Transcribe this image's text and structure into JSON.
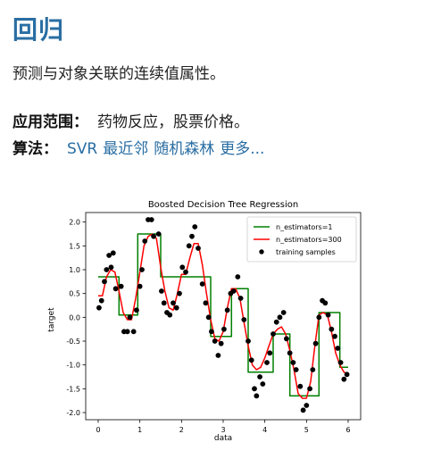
{
  "section": {
    "title": "回归",
    "description": "预测与对象关联的连续值属性。",
    "applications_label": "应用范围：",
    "applications_value": "药物反应，股票价格。",
    "algorithms_label": "算法：",
    "algorithms": [
      "SVR",
      "最近邻",
      "随机森林",
      "更多..."
    ]
  },
  "chart_data": {
    "type": "line",
    "title": "Boosted Decision Tree Regression",
    "xlabel": "data",
    "ylabel": "target",
    "xlim": [
      -0.3,
      6.3
    ],
    "ylim": [
      -2.15,
      2.2
    ],
    "xticks": [
      0,
      1,
      2,
      3,
      4,
      5,
      6
    ],
    "yticks": [
      2.0,
      1.5,
      1.0,
      0.5,
      0.0,
      -0.5,
      -1.0,
      -1.5,
      -2.0
    ],
    "legend_position": "top-right",
    "grid": false,
    "series": [
      {
        "name": "n_estimators=1",
        "color": "#008000",
        "kind": "step",
        "x": [
          0.0,
          0.5,
          0.5,
          0.95,
          0.95,
          1.5,
          1.5,
          2.7,
          2.7,
          3.2,
          3.2,
          3.6,
          3.6,
          4.2,
          4.2,
          4.6,
          4.6,
          5.3,
          5.3,
          5.8,
          5.8,
          6.0
        ],
        "y": [
          0.85,
          0.85,
          0.05,
          0.05,
          1.75,
          1.75,
          0.85,
          0.85,
          -0.4,
          -0.4,
          0.6,
          0.6,
          -1.15,
          -1.15,
          -0.35,
          -0.35,
          -1.65,
          -1.65,
          0.1,
          0.1,
          -1.05,
          -1.05
        ]
      },
      {
        "name": "n_estimators=300",
        "color": "#ff0000",
        "kind": "line",
        "x": [
          0.0,
          0.1,
          0.2,
          0.3,
          0.4,
          0.5,
          0.6,
          0.7,
          0.8,
          0.9,
          1.0,
          1.1,
          1.2,
          1.3,
          1.4,
          1.5,
          1.6,
          1.7,
          1.8,
          1.9,
          2.0,
          2.1,
          2.2,
          2.3,
          2.4,
          2.5,
          2.6,
          2.7,
          2.8,
          2.9,
          3.0,
          3.1,
          3.2,
          3.3,
          3.4,
          3.5,
          3.6,
          3.7,
          3.8,
          3.9,
          4.0,
          4.1,
          4.2,
          4.3,
          4.4,
          4.5,
          4.6,
          4.7,
          4.8,
          4.9,
          5.0,
          5.1,
          5.2,
          5.3,
          5.4,
          5.5,
          5.6,
          5.7,
          5.8,
          5.9,
          6.0
        ],
        "y": [
          0.45,
          0.45,
          0.85,
          1.0,
          0.95,
          0.55,
          0.1,
          -0.05,
          -0.05,
          0.4,
          0.95,
          1.5,
          1.7,
          1.75,
          1.65,
          1.05,
          0.55,
          0.2,
          0.15,
          0.5,
          0.9,
          0.9,
          1.25,
          1.55,
          1.55,
          1.1,
          0.5,
          -0.05,
          -0.45,
          -0.5,
          -0.3,
          0.2,
          0.6,
          0.6,
          0.4,
          -0.1,
          -0.6,
          -1.0,
          -1.1,
          -1.05,
          -0.85,
          -0.6,
          -0.35,
          -0.25,
          -0.2,
          -0.35,
          -0.7,
          -1.1,
          -1.6,
          -1.7,
          -1.7,
          -1.35,
          -0.6,
          0.05,
          0.1,
          0.05,
          -0.3,
          -0.75,
          -1.0,
          -1.15,
          -1.2
        ]
      },
      {
        "name": "training samples",
        "color": "#000000",
        "kind": "scatter",
        "x": [
          0.02,
          0.08,
          0.15,
          0.2,
          0.26,
          0.31,
          0.36,
          0.42,
          0.55,
          0.62,
          0.7,
          0.76,
          0.85,
          0.92,
          1.0,
          1.05,
          1.12,
          1.2,
          1.28,
          1.33,
          1.45,
          1.52,
          1.58,
          1.65,
          1.72,
          1.8,
          1.88,
          1.95,
          2.02,
          2.1,
          2.18,
          2.25,
          2.32,
          2.4,
          2.5,
          2.58,
          2.65,
          2.72,
          2.8,
          2.88,
          2.95,
          3.02,
          3.1,
          3.18,
          3.25,
          3.35,
          3.42,
          3.5,
          3.6,
          3.68,
          3.75,
          3.8,
          3.88,
          3.95,
          4.05,
          4.12,
          4.2,
          4.28,
          4.36,
          4.45,
          4.52,
          4.6,
          4.68,
          4.75,
          4.85,
          4.92,
          5.0,
          5.08,
          5.15,
          5.22,
          5.3,
          5.38,
          5.45,
          5.52,
          5.6,
          5.68,
          5.75,
          5.82,
          5.9,
          5.97
        ],
        "y": [
          0.2,
          0.35,
          0.75,
          1.0,
          1.3,
          1.05,
          1.35,
          0.6,
          0.65,
          -0.3,
          -0.3,
          0.0,
          -0.3,
          0.15,
          0.65,
          1.0,
          1.6,
          2.05,
          2.05,
          1.7,
          1.75,
          0.55,
          0.3,
          0.1,
          0.05,
          0.3,
          0.2,
          0.5,
          1.05,
          0.95,
          1.5,
          1.7,
          1.9,
          1.45,
          0.7,
          0.3,
          0.0,
          -0.3,
          -0.5,
          -0.8,
          -0.55,
          -0.25,
          0.15,
          0.5,
          0.55,
          0.85,
          0.4,
          -0.05,
          -0.5,
          -0.9,
          -1.5,
          -1.65,
          -1.25,
          -1.4,
          -0.95,
          -0.75,
          -0.35,
          -0.1,
          0.0,
          0.1,
          -0.45,
          -0.75,
          -0.95,
          -1.1,
          -1.45,
          -1.95,
          -1.85,
          -1.5,
          -1.1,
          -0.55,
          0.0,
          0.35,
          0.3,
          0.05,
          -0.25,
          -0.4,
          -0.65,
          -0.95,
          -1.3,
          -1.2
        ]
      }
    ]
  }
}
